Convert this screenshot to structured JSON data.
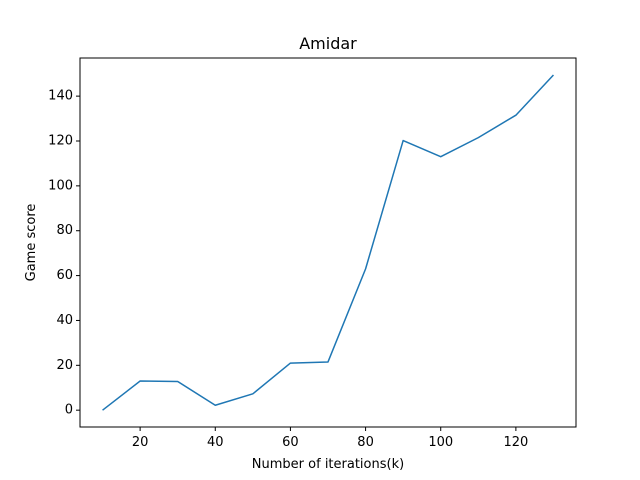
{
  "chart_data": {
    "type": "line",
    "title": "Amidar",
    "xlabel": "Number of iterations(k)",
    "ylabel": "Game score",
    "xlim": [
      4,
      136
    ],
    "ylim": [
      -7.5,
      157
    ],
    "xticks": [
      20,
      40,
      60,
      80,
      100,
      120
    ],
    "yticks": [
      0,
      20,
      40,
      60,
      80,
      100,
      120,
      140
    ],
    "grid": false,
    "legend": "none",
    "color": "#1f77b4",
    "series": [
      {
        "x": [
          10,
          20,
          30,
          40,
          50,
          60,
          70,
          80,
          90,
          100,
          110,
          120,
          130
        ],
        "values": [
          0,
          13,
          12.8,
          2.2,
          7.3,
          21,
          21.5,
          63,
          120.2,
          113,
          121.5,
          131.5,
          149.4
        ]
      }
    ]
  }
}
